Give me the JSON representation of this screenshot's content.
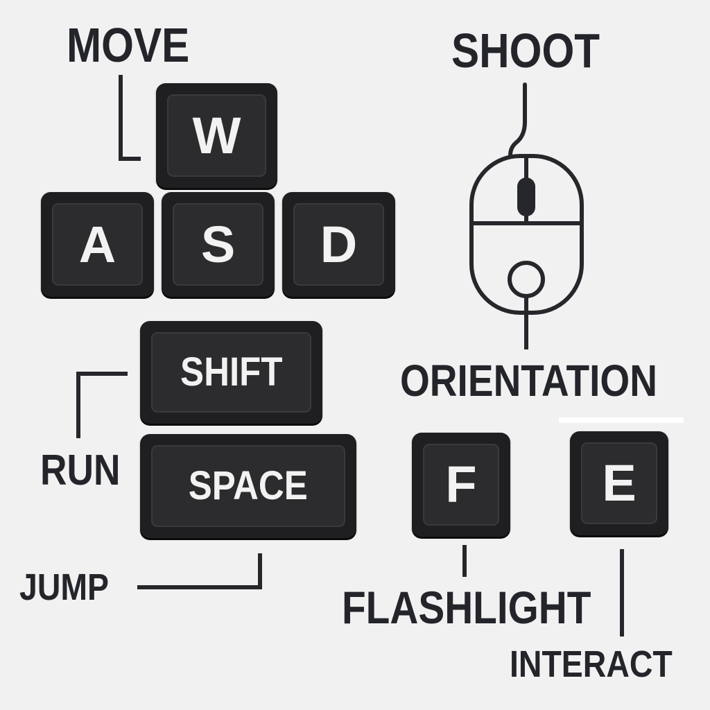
{
  "keys": {
    "w": "W",
    "a": "A",
    "s": "S",
    "d": "D",
    "shift": "SHIFT",
    "space": "SPACE",
    "f": "F",
    "e": "E"
  },
  "labels": {
    "move": "MOVE",
    "shoot": "SHOOT",
    "orientation": "ORIENTATION",
    "run": "RUN",
    "jump": "JUMP",
    "flashlight": "FLASHLIGHT",
    "interact": "INTERACT"
  },
  "icons": {
    "mouse": "mouse-icon"
  },
  "colors": {
    "background": "#f1f1f2",
    "key": "#1f1f21",
    "key_text": "#f2f2f2",
    "label_text": "#24252a"
  }
}
